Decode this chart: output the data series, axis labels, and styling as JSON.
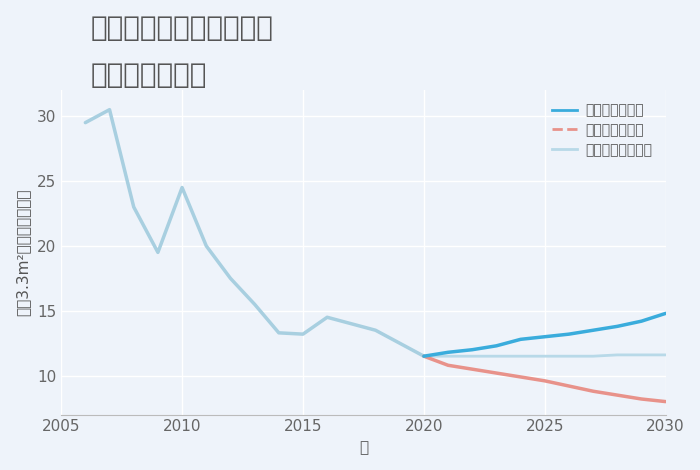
{
  "title_line1": "福岡県柳川市上宮永町の",
  "title_line2": "土地の価格推移",
  "xlabel": "年",
  "ylabel": "平（3.3m²）単価（万円）",
  "xlim": [
    2005,
    2030
  ],
  "ylim": [
    7,
    32
  ],
  "yticks": [
    10,
    15,
    20,
    25,
    30
  ],
  "xticks": [
    2005,
    2010,
    2015,
    2020,
    2025,
    2030
  ],
  "background_color": "#eef3fa",
  "plot_bg_color": "#eef3fa",
  "grid_color": "#ffffff",
  "good_scenario": {
    "label": "グッドシナリオ",
    "color_history": "#a8cfe0",
    "color_future": "#3aacdc",
    "linewidth": 2.5,
    "x_history": [
      2006,
      2007,
      2008,
      2009,
      2010,
      2011,
      2012,
      2013,
      2014,
      2015,
      2016,
      2017,
      2018,
      2019,
      2020
    ],
    "y_history": [
      29.5,
      30.5,
      23.0,
      19.5,
      24.5,
      20.0,
      17.5,
      15.5,
      13.3,
      13.2,
      14.5,
      14.0,
      13.5,
      12.5,
      11.5
    ],
    "x_future": [
      2020,
      2021,
      2022,
      2023,
      2024,
      2025,
      2026,
      2027,
      2028,
      2029,
      2030
    ],
    "y_future": [
      11.5,
      11.8,
      12.0,
      12.3,
      12.8,
      13.0,
      13.2,
      13.5,
      13.8,
      14.2,
      14.8
    ]
  },
  "bad_scenario": {
    "label": "バッドシナリオ",
    "color": "#e8928a",
    "linewidth": 2.5,
    "x": [
      2020,
      2021,
      2022,
      2023,
      2024,
      2025,
      2026,
      2027,
      2028,
      2029,
      2030
    ],
    "y": [
      11.5,
      10.8,
      10.5,
      10.2,
      9.9,
      9.6,
      9.2,
      8.8,
      8.5,
      8.2,
      8.0
    ]
  },
  "normal_scenario": {
    "label": "ノーマルシナリオ",
    "color": "#b8d9e8",
    "linewidth": 2.0,
    "x_future": [
      2020,
      2021,
      2022,
      2023,
      2024,
      2025,
      2026,
      2027,
      2028,
      2029,
      2030
    ],
    "y_future": [
      11.5,
      11.5,
      11.5,
      11.5,
      11.5,
      11.5,
      11.5,
      11.5,
      11.6,
      11.6,
      11.6
    ]
  },
  "title_fontsize": 20,
  "tick_fontsize": 11,
  "legend_fontsize": 10,
  "label_fontsize": 11
}
